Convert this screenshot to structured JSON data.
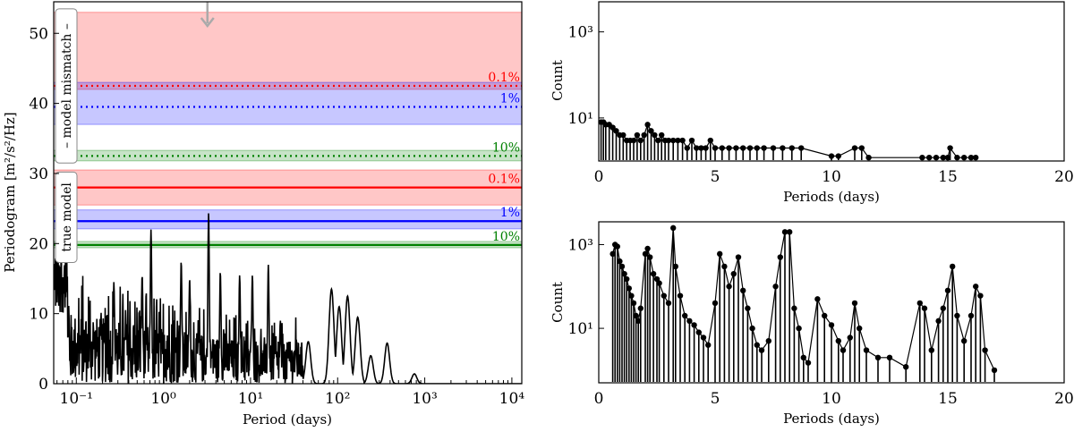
{
  "chart_data": [
    {
      "type": "line",
      "xlabel": "Period (days)",
      "ylabel": "Periodogram [m²/s²/Hz]",
      "xscale": "log",
      "xlim": [
        0.055,
        13000
      ],
      "ylim": [
        0,
        54.5
      ],
      "xticks": [
        0.1,
        1,
        10,
        100,
        1000,
        10000
      ],
      "xtick_labels": [
        "10⁻¹",
        "10⁰",
        "10¹",
        "10²",
        "10³",
        "10⁴"
      ],
      "yticks": [
        0,
        10,
        20,
        30,
        40,
        50
      ],
      "yticks_labels": [
        "0",
        "10",
        "20",
        "30",
        "40",
        "50"
      ],
      "groups": [
        {
          "label": "– model mismatch –",
          "fap_levels": [
            {
              "name": "0.1%",
              "value": 42.5,
              "band": [
                42.0,
                53.0
              ],
              "color": "#ff0000"
            },
            {
              "name": "1%",
              "value": 39.5,
              "band": [
                37.0,
                43.0
              ],
              "color": "#0000ff"
            },
            {
              "name": "10%",
              "value": 32.5,
              "band": [
                31.8,
                33.3
              ],
              "color": "#008000"
            }
          ]
        },
        {
          "label": "true model",
          "fap_levels": [
            {
              "name": "0.1%",
              "value": 28.0,
              "band": [
                25.5,
                30.5
              ],
              "color": "#ff0000"
            },
            {
              "name": "1%",
              "value": 23.2,
              "band": [
                22.1,
                24.8
              ],
              "color": "#0000ff"
            },
            {
              "name": "10%",
              "value": 19.8,
              "band": [
                19.4,
                20.3
              ],
              "color": "#008000"
            }
          ]
        }
      ],
      "arrow_period": 3.2,
      "peaks": [
        {
          "period": 3.3,
          "value": 24.5
        },
        {
          "period": 0.72,
          "value": 22.0
        },
        {
          "period": 0.57,
          "value": 15.5
        },
        {
          "period": 0.27,
          "value": 14.5
        },
        {
          "period": 1.6,
          "value": 17.5
        },
        {
          "period": 2.0,
          "value": 15.0
        },
        {
          "period": 4.5,
          "value": 16.0
        },
        {
          "period": 7.5,
          "value": 15.5
        },
        {
          "period": 10.5,
          "value": 15.5
        },
        {
          "period": 16,
          "value": 17.0
        },
        {
          "period": 22,
          "value": 9.0
        },
        {
          "period": 46,
          "value": 6.0
        },
        {
          "period": 85,
          "value": 13.5
        },
        {
          "period": 104,
          "value": 11.0
        },
        {
          "period": 130,
          "value": 12.5
        },
        {
          "period": 170,
          "value": 9.5
        },
        {
          "period": 240,
          "value": 4.0
        },
        {
          "period": 370,
          "value": 5.8
        },
        {
          "period": 760,
          "value": 1.4
        }
      ]
    },
    {
      "type": "stem",
      "xlabel": "Periods (days)",
      "ylabel": "Count",
      "yscale": "log",
      "xlim": [
        0,
        20
      ],
      "ylim": [
        1,
        5000
      ],
      "xticks": [
        0,
        5,
        10,
        15,
        20
      ],
      "yticks": [
        10,
        1000
      ],
      "ytick_labels": [
        "10¹",
        "10³"
      ],
      "data": [
        [
          0.1,
          8
        ],
        [
          0.2,
          8
        ],
        [
          0.3,
          7
        ],
        [
          0.45,
          7
        ],
        [
          0.6,
          6
        ],
        [
          0.75,
          5
        ],
        [
          0.9,
          4
        ],
        [
          1.05,
          4
        ],
        [
          1.2,
          3
        ],
        [
          1.35,
          3
        ],
        [
          1.5,
          3
        ],
        [
          1.65,
          4
        ],
        [
          1.8,
          3
        ],
        [
          1.95,
          4
        ],
        [
          2.1,
          7
        ],
        [
          2.25,
          5
        ],
        [
          2.4,
          4
        ],
        [
          2.55,
          3
        ],
        [
          2.7,
          4
        ],
        [
          2.85,
          3
        ],
        [
          3.0,
          3
        ],
        [
          3.2,
          3
        ],
        [
          3.4,
          3
        ],
        [
          3.6,
          3
        ],
        [
          3.8,
          2
        ],
        [
          4.0,
          3
        ],
        [
          4.2,
          2
        ],
        [
          4.4,
          2
        ],
        [
          4.6,
          2
        ],
        [
          4.8,
          3
        ],
        [
          5.0,
          2
        ],
        [
          5.3,
          2
        ],
        [
          5.6,
          2
        ],
        [
          5.9,
          2
        ],
        [
          6.2,
          2
        ],
        [
          6.5,
          2
        ],
        [
          6.8,
          2
        ],
        [
          7.1,
          2
        ],
        [
          7.5,
          2
        ],
        [
          7.9,
          2
        ],
        [
          8.3,
          2
        ],
        [
          8.7,
          2
        ],
        [
          10.0,
          1.3
        ],
        [
          10.3,
          1.3
        ],
        [
          11.0,
          2
        ],
        [
          11.3,
          2
        ],
        [
          11.6,
          1.2
        ],
        [
          13.9,
          1.2
        ],
        [
          14.2,
          1.2
        ],
        [
          14.5,
          1.2
        ],
        [
          14.8,
          1.2
        ],
        [
          15.0,
          1.2
        ],
        [
          15.1,
          2
        ],
        [
          15.4,
          1.2
        ],
        [
          15.7,
          1.2
        ],
        [
          16.0,
          1.2
        ],
        [
          16.2,
          1.2
        ]
      ]
    },
    {
      "type": "stem",
      "xlabel": "Periods (days)",
      "ylabel": "Count",
      "yscale": "log",
      "xlim": [
        0,
        20
      ],
      "ylim": [
        0.5,
        3500
      ],
      "xticks": [
        0,
        5,
        10,
        15,
        20
      ],
      "yticks": [
        10,
        1000
      ],
      "ytick_labels": [
        "10¹",
        "10³"
      ],
      "data": [
        [
          0.6,
          600
        ],
        [
          0.7,
          1000
        ],
        [
          0.8,
          900
        ],
        [
          0.9,
          400
        ],
        [
          1.0,
          300
        ],
        [
          1.1,
          200
        ],
        [
          1.2,
          150
        ],
        [
          1.3,
          90
        ],
        [
          1.4,
          60
        ],
        [
          1.5,
          40
        ],
        [
          1.6,
          20
        ],
        [
          1.7,
          15
        ],
        [
          1.8,
          30
        ],
        [
          2.0,
          600
        ],
        [
          2.1,
          800
        ],
        [
          2.2,
          500
        ],
        [
          2.35,
          200
        ],
        [
          2.5,
          150
        ],
        [
          2.6,
          120
        ],
        [
          2.8,
          60
        ],
        [
          3.0,
          40
        ],
        [
          3.2,
          2500
        ],
        [
          3.3,
          300
        ],
        [
          3.5,
          60
        ],
        [
          3.7,
          20
        ],
        [
          3.9,
          15
        ],
        [
          4.1,
          12
        ],
        [
          4.3,
          8
        ],
        [
          4.5,
          6
        ],
        [
          4.7,
          4
        ],
        [
          5.0,
          40
        ],
        [
          5.2,
          600
        ],
        [
          5.4,
          300
        ],
        [
          5.6,
          100
        ],
        [
          5.8,
          200
        ],
        [
          6.0,
          500
        ],
        [
          6.2,
          80
        ],
        [
          6.4,
          30
        ],
        [
          6.6,
          10
        ],
        [
          6.8,
          4
        ],
        [
          7.0,
          3
        ],
        [
          7.3,
          5
        ],
        [
          7.6,
          100
        ],
        [
          7.8,
          500
        ],
        [
          8.0,
          2000
        ],
        [
          8.2,
          2000
        ],
        [
          8.4,
          30
        ],
        [
          8.6,
          10
        ],
        [
          8.8,
          2
        ],
        [
          9.0,
          1.5
        ],
        [
          9.4,
          50
        ],
        [
          9.7,
          20
        ],
        [
          10.0,
          12
        ],
        [
          10.3,
          5
        ],
        [
          10.5,
          3
        ],
        [
          10.8,
          6
        ],
        [
          11.0,
          40
        ],
        [
          11.2,
          10
        ],
        [
          11.5,
          3
        ],
        [
          12.0,
          2
        ],
        [
          12.5,
          2
        ],
        [
          13.2,
          1.2
        ],
        [
          13.8,
          40
        ],
        [
          14.0,
          30
        ],
        [
          14.3,
          3
        ],
        [
          14.6,
          15
        ],
        [
          14.8,
          30
        ],
        [
          15.0,
          80
        ],
        [
          15.2,
          300
        ],
        [
          15.4,
          20
        ],
        [
          15.7,
          5
        ],
        [
          16.0,
          20
        ],
        [
          16.2,
          100
        ],
        [
          16.4,
          60
        ],
        [
          16.6,
          3
        ],
        [
          17.0,
          1
        ]
      ]
    }
  ]
}
